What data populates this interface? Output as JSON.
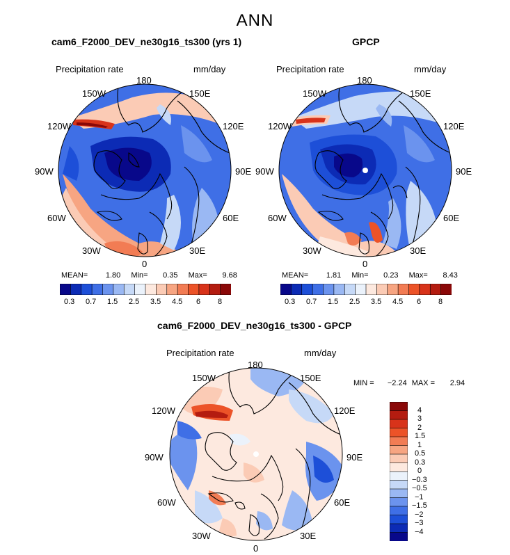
{
  "suptitle": "ANN",
  "panels": [
    {
      "title": "cam6_F2000_DEV_ne30g16_ts300 (yrs 1)",
      "left_label": "Precipitation rate",
      "right_label": "mm/day",
      "stats": {
        "mean_label": "MEAN=",
        "mean": "1.80",
        "min_label": "Min=",
        "min": "0.35",
        "max_label": "Max=",
        "max": "9.68"
      }
    },
    {
      "title": "GPCP",
      "left_label": "Precipitation rate",
      "right_label": "mm/day",
      "stats": {
        "mean_label": "MEAN=",
        "mean": "1.81",
        "min_label": "Min=",
        "min": "0.23",
        "max_label": "Max=",
        "max": "8.43"
      }
    },
    {
      "title": "cam6_F2000_DEV_ne30g16_ts300 - GPCP",
      "left_label": "Precipitation rate",
      "right_label": "mm/day",
      "stats": {
        "min_label": "MIN =",
        "min": "−2.24",
        "max_label": "MAX =",
        "max": "2.94"
      }
    }
  ],
  "lon_labels": [
    "180",
    "150E",
    "120E",
    "90E",
    "60E",
    "30E",
    "0",
    "30W",
    "60W",
    "90W",
    "120W",
    "150W"
  ],
  "colorbar_abs": {
    "tick_labels": [
      "0.3",
      "0.7",
      "1.5",
      "2.5",
      "3.5",
      "4.5",
      "6",
      "8"
    ],
    "colors": [
      "#08088a",
      "#0c2bb5",
      "#1d4fd8",
      "#3f6fe6",
      "#6b93ee",
      "#9ab8f3",
      "#c6d9f7",
      "#ebf2fb",
      "#fde9df",
      "#fbcbb5",
      "#f7a582",
      "#f27c54",
      "#ec5328",
      "#d8331a",
      "#b41c10",
      "#8a0808"
    ]
  },
  "colorbar_diff": {
    "levels": [
      "4",
      "3",
      "2",
      "1.5",
      "1",
      "0.5",
      "0.3",
      "0",
      "−0.3",
      "−0.5",
      "−1",
      "−1.5",
      "−2",
      "−3",
      "−4"
    ],
    "colors": [
      "#8a0808",
      "#b41c10",
      "#d8331a",
      "#ec5328",
      "#f27c54",
      "#f7a582",
      "#fbcbb5",
      "#fde9df",
      "#ebf2fb",
      "#c6d9f7",
      "#9ab8f3",
      "#6b93ee",
      "#3f6fe6",
      "#1d4fd8",
      "#0c2bb5",
      "#08088a"
    ]
  },
  "chart_data": [
    {
      "type": "heatmap",
      "title": "cam6_F2000_DEV_ne30g16_ts300 (yrs 1)",
      "projection": "north polar stereographic",
      "variable": "Precipitation rate",
      "units": "mm/day",
      "mean": 1.8,
      "min": 0.35,
      "max": 9.68,
      "levels": [
        0.3,
        0.5,
        0.7,
        1,
        1.5,
        2,
        2.5,
        3,
        3.5,
        4,
        4.5,
        5,
        6,
        7,
        8
      ]
    },
    {
      "type": "heatmap",
      "title": "GPCP",
      "projection": "north polar stereographic",
      "variable": "Precipitation rate",
      "units": "mm/day",
      "mean": 1.81,
      "min": 0.23,
      "max": 8.43,
      "levels": [
        0.3,
        0.5,
        0.7,
        1,
        1.5,
        2,
        2.5,
        3,
        3.5,
        4,
        4.5,
        5,
        6,
        7,
        8
      ]
    },
    {
      "type": "heatmap",
      "title": "cam6_F2000_DEV_ne30g16_ts300 - GPCP",
      "projection": "north polar stereographic",
      "variable": "Precipitation rate",
      "units": "mm/day",
      "min": -2.24,
      "max": 2.94,
      "levels": [
        -4,
        -3,
        -2,
        -1.5,
        -1,
        -0.5,
        -0.3,
        0,
        0.3,
        0.5,
        1,
        1.5,
        2,
        3,
        4
      ]
    }
  ]
}
